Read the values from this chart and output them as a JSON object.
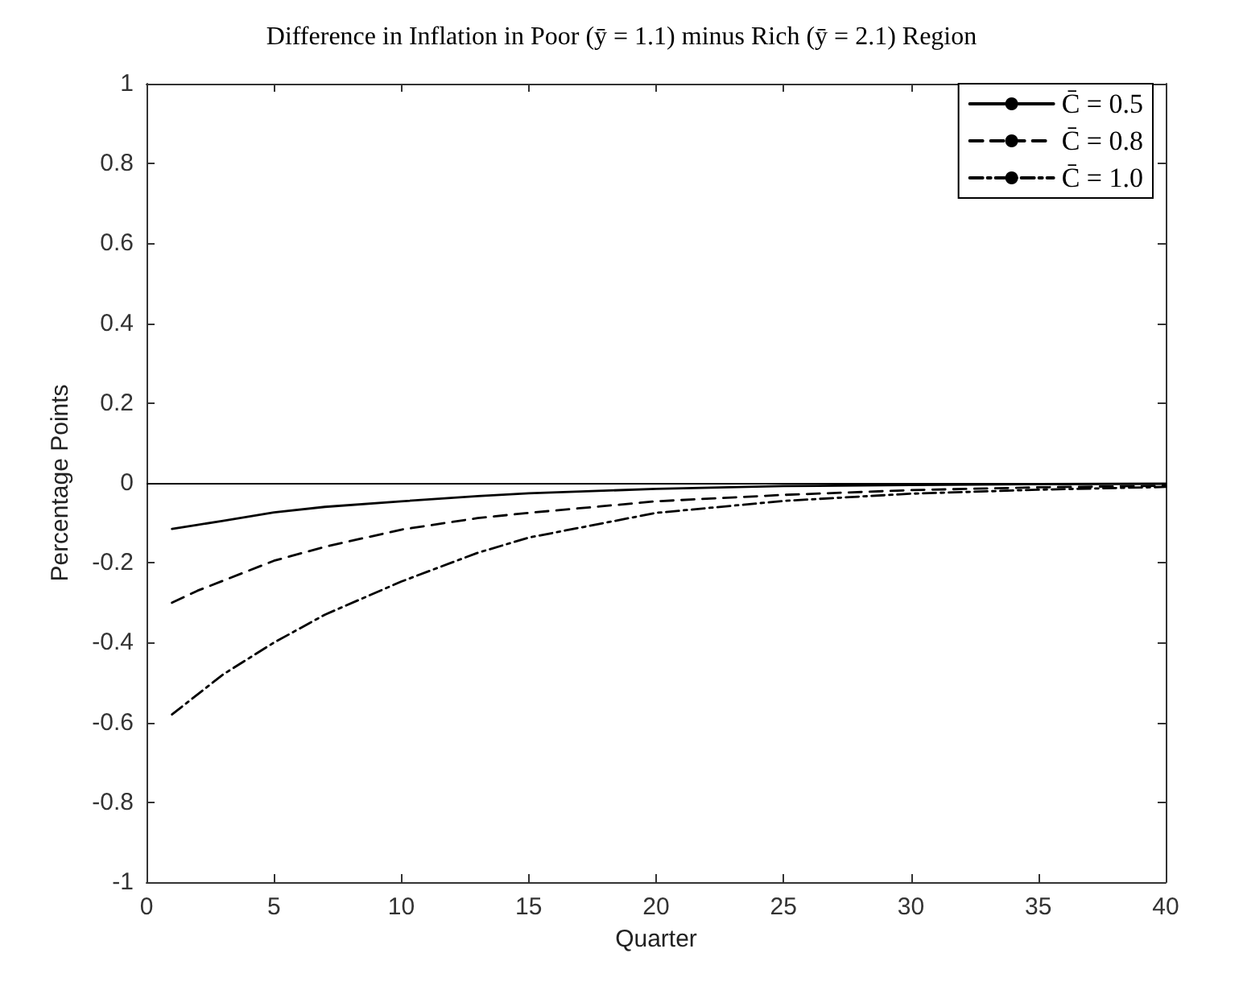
{
  "chart_data": {
    "type": "line",
    "title": "Difference in Inflation in Poor (ȳ = 1.1) minus Rich (ȳ = 2.1) Region",
    "xlabel": "Quarter",
    "ylabel": "Percentage Points",
    "x": [
      1,
      2,
      3,
      5,
      7,
      10,
      13,
      15,
      20,
      25,
      30,
      35,
      40
    ],
    "series": [
      {
        "name": "C̄ = 0.5",
        "color": "#000000",
        "line_style": "solid",
        "values": [
          -0.115,
          -0.105,
          -0.095,
          -0.074,
          -0.06,
          -0.046,
          -0.033,
          -0.026,
          -0.015,
          -0.008,
          -0.005,
          -0.003,
          -0.002
        ]
      },
      {
        "name": "C̄ = 0.8",
        "color": "#000000",
        "line_style": "dashed",
        "values": [
          -0.3,
          -0.27,
          -0.245,
          -0.195,
          -0.16,
          -0.117,
          -0.088,
          -0.075,
          -0.046,
          -0.03,
          -0.018,
          -0.011,
          -0.007
        ]
      },
      {
        "name": "C̄ = 1.0",
        "color": "#000000",
        "line_style": "dashed-dotted",
        "values": [
          -0.58,
          -0.53,
          -0.48,
          -0.4,
          -0.33,
          -0.247,
          -0.175,
          -0.137,
          -0.075,
          -0.045,
          -0.027,
          -0.017,
          -0.01
        ]
      }
    ],
    "xlim": [
      0,
      40
    ],
    "xticks": [
      0,
      5,
      10,
      15,
      20,
      25,
      30,
      35,
      40
    ],
    "ylim": [
      -1,
      1
    ],
    "yticks": [
      -1,
      -0.8,
      -0.6,
      -0.4,
      -0.2,
      0,
      0.2,
      0.4,
      0.6,
      0.8,
      1
    ],
    "ref_lines": [
      {
        "axis": "y",
        "value": 0,
        "color": "#000000"
      }
    ],
    "grid": false,
    "legend": "top right",
    "marker": "none"
  }
}
